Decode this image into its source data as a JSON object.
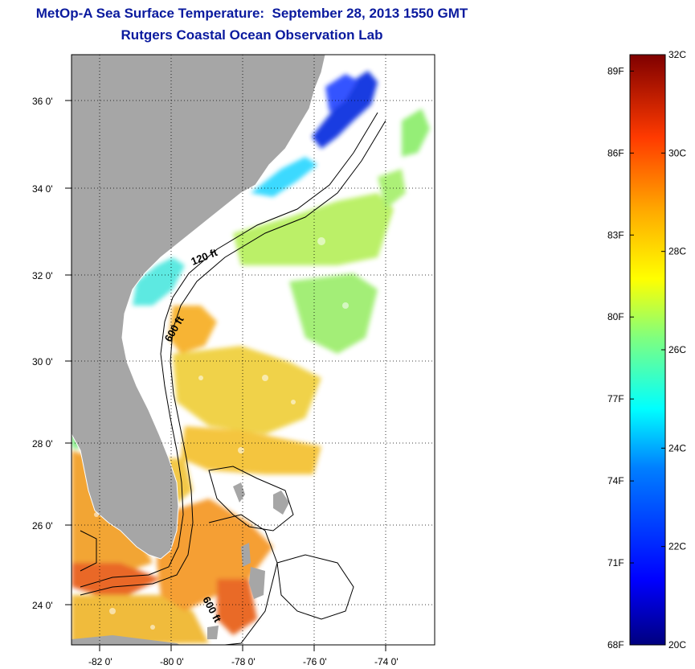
{
  "title": "MetOp-A Sea Surface Temperature:  September 28, 2013 1550 GMT",
  "subtitle": "Rutgers Coastal Ocean Observation Lab",
  "map": {
    "lon_range": [
      -83.0,
      -72.8
    ],
    "lat_range": [
      23.0,
      37.2
    ],
    "lat_ticks": [
      {
        "value": 36,
        "label": "36 0'"
      },
      {
        "value": 34,
        "label": "34 0'"
      },
      {
        "value": 32,
        "label": "32 0'"
      },
      {
        "value": 30,
        "label": "30 0'"
      },
      {
        "value": 28,
        "label": "28 0'"
      },
      {
        "value": 26,
        "label": "26 0'"
      },
      {
        "value": 24,
        "label": "24 0'"
      }
    ],
    "lon_ticks": [
      {
        "value": -82,
        "label": "-82 0'"
      },
      {
        "value": -80,
        "label": "-80 0'"
      },
      {
        "value": -78,
        "label": "-78 0'"
      },
      {
        "value": -76,
        "label": "-76 0'"
      },
      {
        "value": -74,
        "label": "-74 0'"
      }
    ],
    "grid": "dotted",
    "isobath_labels": [
      "120 ft",
      "600 ft",
      "600 ft"
    ]
  },
  "colorbar": {
    "min_c": 20,
    "max_c": 32,
    "celsius_labels": [
      {
        "value": 32,
        "label": "32C"
      },
      {
        "value": 30,
        "label": "30C"
      },
      {
        "value": 28,
        "label": "28C"
      },
      {
        "value": 26,
        "label": "26C"
      },
      {
        "value": 24,
        "label": "24C"
      },
      {
        "value": 22,
        "label": "22C"
      },
      {
        "value": 20,
        "label": "20C"
      }
    ],
    "fahrenheit_labels": [
      {
        "value": 89,
        "label": "89F"
      },
      {
        "value": 86,
        "label": "86F"
      },
      {
        "value": 83,
        "label": "83F"
      },
      {
        "value": 80,
        "label": "80F"
      },
      {
        "value": 77,
        "label": "77F"
      },
      {
        "value": 74,
        "label": "74F"
      },
      {
        "value": 71,
        "label": "71F"
      },
      {
        "value": 68,
        "label": "68F"
      }
    ],
    "colormap": [
      "#00007f",
      "#0000ff",
      "#007fff",
      "#00ffff",
      "#7fff7f",
      "#ffff00",
      "#ff7f00",
      "#ff0000",
      "#7f0000"
    ]
  },
  "colors": {
    "land": "#a6a6a6",
    "title": "#0a1a9e"
  }
}
